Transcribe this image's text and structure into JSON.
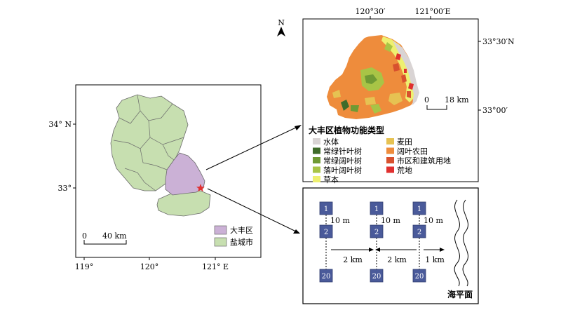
{
  "left_map": {
    "lat_labels": [
      "34° N",
      "33°"
    ],
    "lon_labels": [
      "119°",
      "120°",
      "121° E"
    ],
    "scale": {
      "zero": "0",
      "dist": "40 km"
    },
    "legend": [
      {
        "label": "大丰区",
        "color": "#cbb1d6"
      },
      {
        "label": "盐城市",
        "color": "#c7dfb0"
      }
    ]
  },
  "right_map": {
    "north": "N",
    "top_lon": [
      "120°30′",
      "121°00′E"
    ],
    "right_lat": [
      "33°30′N",
      "33°00′"
    ],
    "scale": {
      "zero": "0",
      "dist": "18 km"
    },
    "legend_title": "大丰区植物功能类型",
    "legend_left": [
      {
        "label": "水体",
        "color": "#d9d4d4"
      },
      {
        "label": "常绿针叶树",
        "color": "#3f6b2a"
      },
      {
        "label": "常绿阔叶树",
        "color": "#6f9a34"
      },
      {
        "label": "落叶阔叶树",
        "color": "#a8c446"
      },
      {
        "label": "草本",
        "color": "#eef070"
      }
    ],
    "legend_right": [
      {
        "label": "麦田",
        "color": "#e6c252"
      },
      {
        "label": "阔叶农田",
        "color": "#ee8c3c"
      },
      {
        "label": "市区和建筑用地",
        "color": "#d8512e"
      },
      {
        "label": "荒地",
        "color": "#e0302f"
      }
    ]
  },
  "schematic": {
    "plot_labels": [
      "1",
      "2",
      "20"
    ],
    "vertical_gap": "10 m",
    "horizontal_gaps": [
      "2 km",
      "2 km",
      "1 km"
    ],
    "sea_label": "海平面"
  }
}
